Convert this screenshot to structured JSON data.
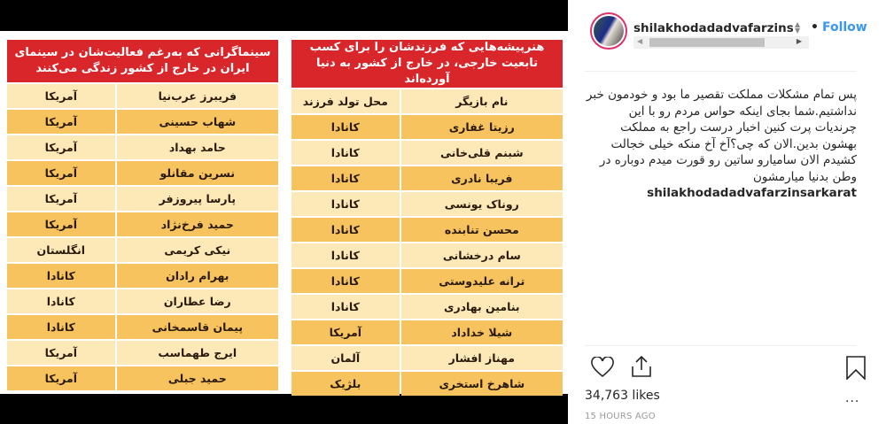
{
  "post_image": {
    "left_table": {
      "title": "سینماگرانی که به‌رغم فعالیت‌شان در سینمای ایران در خارج از کشور زندگی می‌کنند",
      "rows": [
        [
          "فریبرز عرب‌نیا",
          "آمریکا"
        ],
        [
          "شهاب حسینی",
          "آمریکا"
        ],
        [
          "حامد بهداد",
          "آمریکا"
        ],
        [
          "نسرین مقانلو",
          "آمریکا"
        ],
        [
          "پارسا پیروزفر",
          "آمریکا"
        ],
        [
          "حمید فرخ‌نژاد",
          "آمریکا"
        ],
        [
          "نیکی کریمی",
          "انگلستان"
        ],
        [
          "بهرام رادان",
          "کانادا"
        ],
        [
          "رضا عطاران",
          "کانادا"
        ],
        [
          "پیمان قاسمخانی",
          "کانادا"
        ],
        [
          "ایرج طهماسب",
          "آمریکا"
        ],
        [
          "حمید جبلی",
          "آمریکا"
        ]
      ]
    },
    "right_table": {
      "title": "هنرپیشه‌هایی که فرزندشان را برای کسب تابعیت خارجی، در خارج از کشور به دنیا آورده‌اند",
      "rows": [
        [
          "نام بازیگر",
          "محل تولد فرزند"
        ],
        [
          "رزیتا غفاری",
          "کانادا"
        ],
        [
          "شبنم قلی‌خانی",
          "کانادا"
        ],
        [
          "فریبا نادری",
          "کانادا"
        ],
        [
          "روناک یونسی",
          "کانادا"
        ],
        [
          "محسن تنابنده",
          "کانادا"
        ],
        [
          "سام درخشانی",
          "کانادا"
        ],
        [
          "ترانه علیدوستی",
          "کانادا"
        ],
        [
          "بنامین بهادری",
          "کانادا"
        ],
        [
          "شیلا خداداد",
          "آمریکا"
        ],
        [
          "مهناز افشار",
          "آلمان"
        ],
        [
          "شاهرخ استخری",
          "بلژیک"
        ]
      ]
    }
  },
  "header": {
    "username": "shilakhodadadvafarzinsarkarat",
    "follow_label": "Follow",
    "separator": "•"
  },
  "caption": {
    "username": "shilakhodadadvafarzinsarkarat",
    "text": "پس تمام مشکلات مملکت تقصیر ما بود و خودمون خبر نداشتیم.شما بجای اینکه حواس مردم رو با این چرندیات پرت کنین اخبار درست راجع به مملکت بهشون بدین.الان که چی؟آخ آخ منکه خیلی خجالت کشیدم الان سامیارو ساتین رو قورت میدم دوباره در وطن بدنیا میارمشون"
  },
  "actions": {
    "icons": [
      "heart-icon",
      "share-icon",
      "bookmark-icon",
      "more-icon"
    ],
    "likes": "34,763 likes",
    "timestamp": "15 HOURS AGO",
    "more_label": "..."
  },
  "colors": {
    "header_red": "#d9262b",
    "row_light": "#fde8b8",
    "row_dark": "#f7c35f",
    "follow_blue": "#3897f0"
  }
}
